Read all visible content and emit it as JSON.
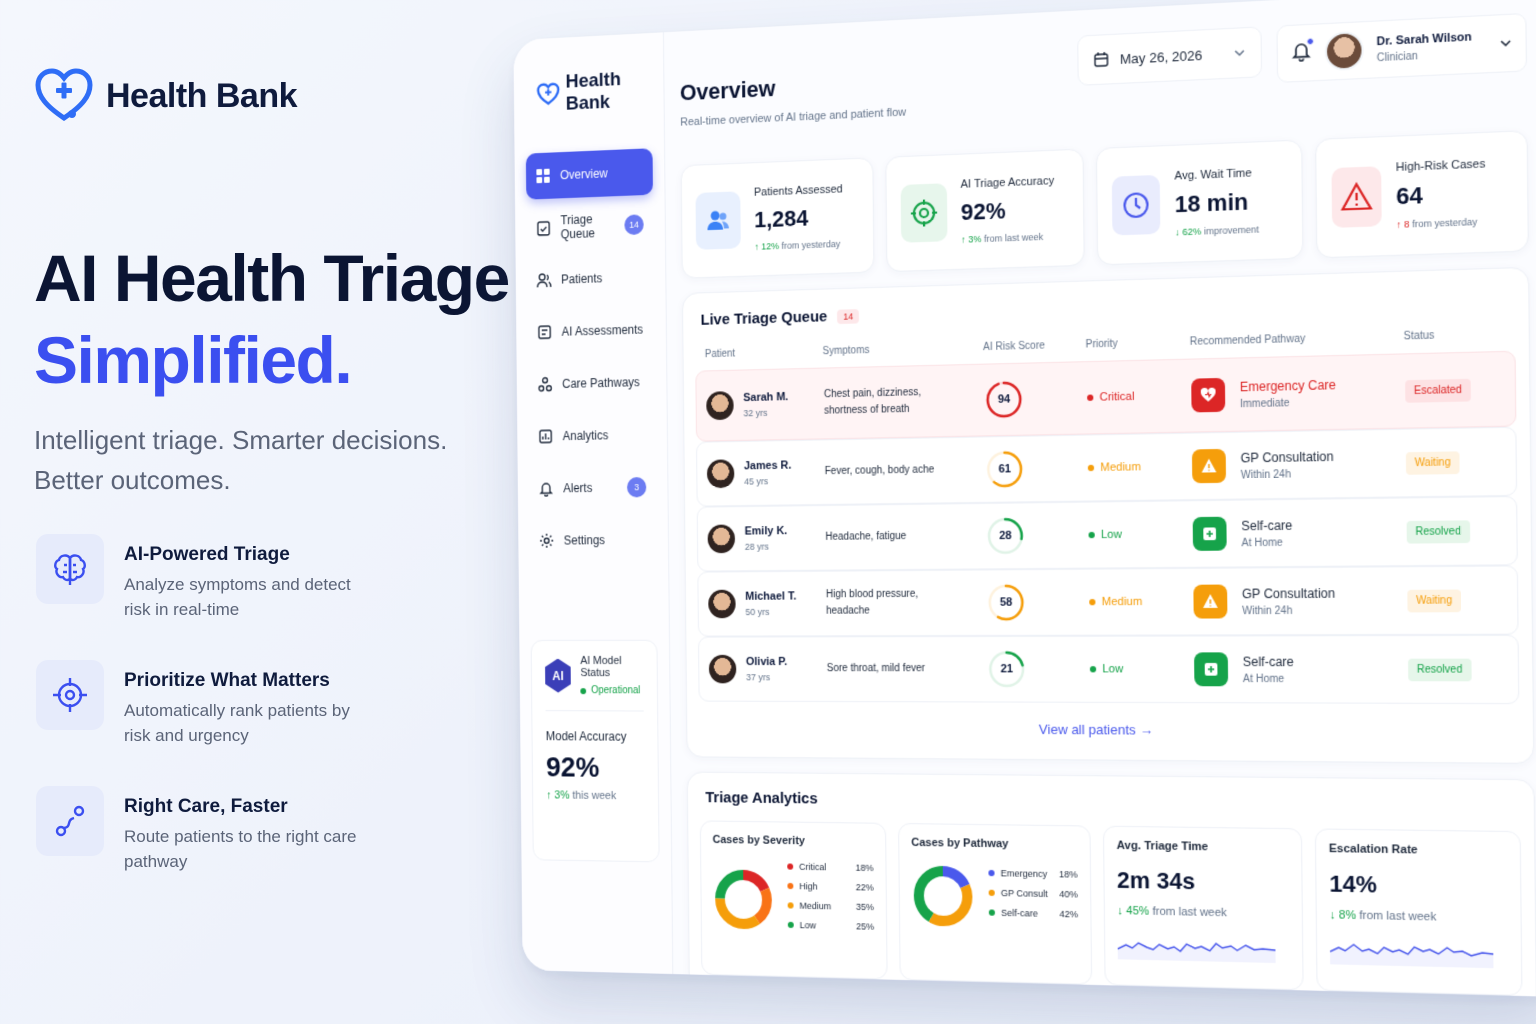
{
  "brand": {
    "name": "Health Bank"
  },
  "hero": {
    "title": "AI Health Triage",
    "accent": "Simplified.",
    "subtitle": "Intelligent triage. Smarter decisions. Better outcomes."
  },
  "features": [
    {
      "icon": "brain-icon",
      "title": "AI-Powered Triage",
      "desc": "Analyze symptoms and detect risk in real-time"
    },
    {
      "icon": "target-icon",
      "title": "Prioritize What Matters",
      "desc": "Automatically rank patients by risk and urgency"
    },
    {
      "icon": "route-icon",
      "title": "Right Care, Faster",
      "desc": "Route patients to the right care pathway"
    }
  ],
  "sidebar": {
    "brand": "Health Bank",
    "items": [
      {
        "label": "Overview",
        "icon": "grid-icon",
        "active": true
      },
      {
        "label": "Triage Queue",
        "icon": "clipboard-icon",
        "badge": "14"
      },
      {
        "label": "Patients",
        "icon": "users-icon"
      },
      {
        "label": "AI Assessments",
        "icon": "assessment-icon"
      },
      {
        "label": "Care Pathways",
        "icon": "pathway-icon"
      },
      {
        "label": "Analytics",
        "icon": "analytics-icon"
      },
      {
        "label": "Alerts",
        "icon": "bell-icon",
        "badge": "3"
      },
      {
        "label": "Settings",
        "icon": "gear-icon"
      }
    ],
    "model": {
      "badge": "AI",
      "title": "AI Model Status",
      "status": "Operational",
      "accuracy_label": "Model Accuracy",
      "accuracy_value": "92%",
      "accuracy_delta": "3%",
      "accuracy_delta_suffix": "this week"
    }
  },
  "header": {
    "title": "Overview",
    "subtitle": "Real-time overview of AI triage and patient flow",
    "date": "May 26, 2026",
    "user_name": "Dr. Sarah Wilson",
    "user_role": "Clinician"
  },
  "stats": [
    {
      "label": "Patients Assessed",
      "value": "1,284",
      "delta": "12%",
      "delta_suffix": "from yesterday",
      "direction": "up",
      "accent": "#3b82f6",
      "bg": "#e8f0fe"
    },
    {
      "label": "AI Triage Accuracy",
      "value": "92%",
      "delta": "3%",
      "delta_suffix": "from last week",
      "direction": "up",
      "accent": "#16a34a",
      "bg": "#e7f6ec"
    },
    {
      "label": "Avg. Wait Time",
      "value": "18 min",
      "delta": "62%",
      "delta_suffix": "improvement",
      "direction": "down",
      "accent": "#4a59ec",
      "bg": "#e9ecfd"
    },
    {
      "label": "High-Risk Cases",
      "value": "64",
      "delta": "8",
      "delta_suffix": "from yesterday",
      "direction": "up",
      "accent": "#dc2626",
      "bg": "#fde8ea"
    }
  ],
  "queue": {
    "title": "Live Triage Queue",
    "badge": "14",
    "columns": [
      "Patient",
      "Symptoms",
      "AI Risk Score",
      "Priority",
      "Recommended Pathway",
      "Status"
    ],
    "rows": [
      {
        "name": "Sarah M.",
        "age": "32 yrs",
        "symptoms": "Chest pain, dizziness, shortness of breath",
        "score": "94",
        "score_frac": 0.94,
        "priority": "Critical",
        "pathway": "Emergency Care",
        "pathway_sub": "Immediate",
        "status": "Escalated",
        "color": "#dc2626",
        "status_bg": "#fde2e4"
      },
      {
        "name": "James R.",
        "age": "45 yrs",
        "symptoms": "Fever, cough, body ache",
        "score": "61",
        "score_frac": 0.61,
        "priority": "Medium",
        "pathway": "GP Consultation",
        "pathway_sub": "Within 24h",
        "status": "Waiting",
        "color": "#f59e0b",
        "status_bg": "#fef3e2"
      },
      {
        "name": "Emily K.",
        "age": "28 yrs",
        "symptoms": "Headache, fatigue",
        "score": "28",
        "score_frac": 0.28,
        "priority": "Low",
        "pathway": "Self-care",
        "pathway_sub": "At Home",
        "status": "Resolved",
        "color": "#16a34a",
        "status_bg": "#e6f6ea"
      },
      {
        "name": "Michael T.",
        "age": "50 yrs",
        "symptoms": "High blood pressure, headache",
        "score": "58",
        "score_frac": 0.58,
        "priority": "Medium",
        "pathway": "GP Consultation",
        "pathway_sub": "Within 24h",
        "status": "Waiting",
        "color": "#f59e0b",
        "status_bg": "#fef3e2"
      },
      {
        "name": "Olivia P.",
        "age": "37 yrs",
        "symptoms": "Sore throat, mild fever",
        "score": "21",
        "score_frac": 0.21,
        "priority": "Low",
        "pathway": "Self-care",
        "pathway_sub": "At Home",
        "status": "Resolved",
        "color": "#16a34a",
        "status_bg": "#e6f6ea"
      }
    ],
    "view_all": "View all patients"
  },
  "analytics": {
    "title": "Triage Analytics",
    "severity": {
      "title": "Cases by Severity",
      "items": [
        {
          "label": "Critical",
          "value": "18%",
          "frac": 0.18,
          "color": "#dc2626"
        },
        {
          "label": "High",
          "value": "22%",
          "frac": 0.22,
          "color": "#f97316"
        },
        {
          "label": "Medium",
          "value": "35%",
          "frac": 0.35,
          "color": "#f59e0b"
        },
        {
          "label": "Low",
          "value": "25%",
          "frac": 0.25,
          "color": "#16a34a"
        }
      ]
    },
    "pathway": {
      "title": "Cases by Pathway",
      "items": [
        {
          "label": "Emergency",
          "value": "18%",
          "frac": 0.18,
          "color": "#4a59ec"
        },
        {
          "label": "GP Consult",
          "value": "40%",
          "frac": 0.4,
          "color": "#f59e0b"
        },
        {
          "label": "Self-care",
          "value": "42%",
          "frac": 0.42,
          "color": "#16a34a"
        }
      ]
    },
    "triage_time": {
      "title": "Avg. Triage Time",
      "value": "2m 34s",
      "delta": "45%",
      "delta_suffix": "from last week"
    },
    "escalation": {
      "title": "Escalation Rate",
      "value": "14%",
      "delta": "8%",
      "delta_suffix": "from last week"
    }
  }
}
